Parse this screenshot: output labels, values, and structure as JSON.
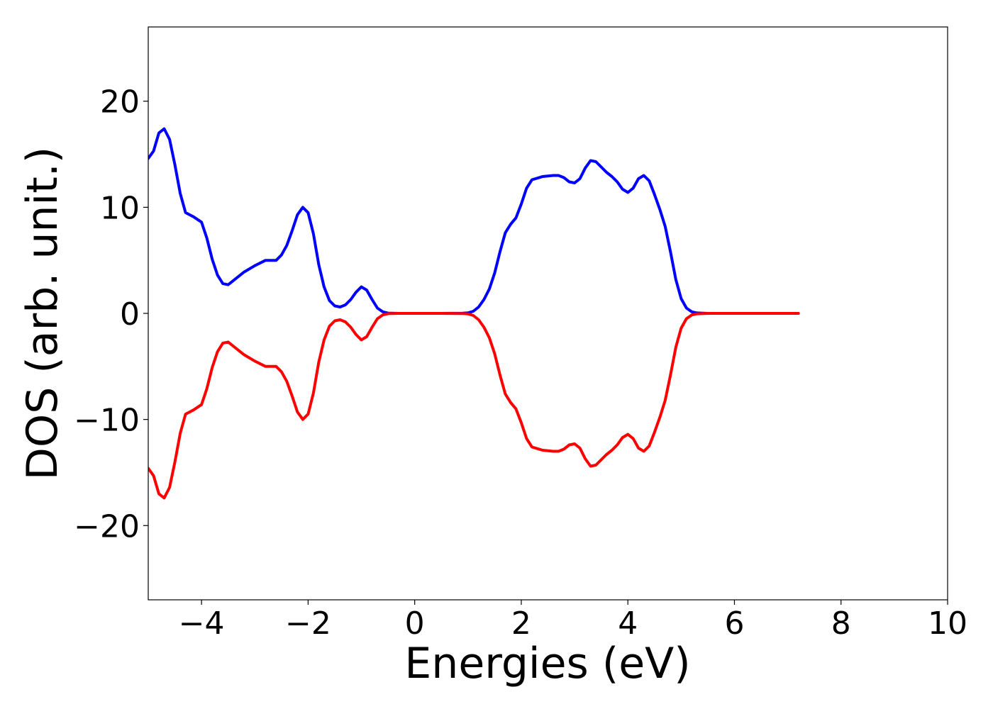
{
  "chart_data": {
    "type": "line",
    "title": "",
    "xlabel": "Energies (eV)",
    "ylabel": "DOS (arb. unit.)",
    "xlim": [
      -5,
      10
    ],
    "ylim": [
      -27,
      27
    ],
    "x_ticks": [
      {
        "value": -4,
        "label": "−4"
      },
      {
        "value": -2,
        "label": "−2"
      },
      {
        "value": 0,
        "label": "0"
      },
      {
        "value": 2,
        "label": "2"
      },
      {
        "value": 4,
        "label": "4"
      },
      {
        "value": 6,
        "label": "6"
      },
      {
        "value": 8,
        "label": "8"
      },
      {
        "value": 10,
        "label": "10"
      }
    ],
    "y_ticks": [
      {
        "value": -20,
        "label": "−20"
      },
      {
        "value": -10,
        "label": "−10"
      },
      {
        "value": 0,
        "label": "0"
      },
      {
        "value": 10,
        "label": "10"
      },
      {
        "value": 20,
        "label": "20"
      }
    ],
    "grid": false,
    "legend": "none",
    "series": [
      {
        "color": "#0000ff",
        "points": [
          [
            -5.0,
            14.6
          ],
          [
            -4.9,
            15.3
          ],
          [
            -4.8,
            17.0
          ],
          [
            -4.7,
            17.4
          ],
          [
            -4.6,
            16.4
          ],
          [
            -4.5,
            14.0
          ],
          [
            -4.4,
            11.3
          ],
          [
            -4.3,
            9.5
          ],
          [
            -4.15,
            9.1
          ],
          [
            -4.0,
            8.6
          ],
          [
            -3.9,
            7.1
          ],
          [
            -3.8,
            5.1
          ],
          [
            -3.7,
            3.6
          ],
          [
            -3.6,
            2.8
          ],
          [
            -3.5,
            2.7
          ],
          [
            -3.4,
            3.1
          ],
          [
            -3.2,
            3.9
          ],
          [
            -3.0,
            4.5
          ],
          [
            -2.8,
            5.0
          ],
          [
            -2.6,
            5.0
          ],
          [
            -2.5,
            5.5
          ],
          [
            -2.4,
            6.4
          ],
          [
            -2.3,
            7.8
          ],
          [
            -2.2,
            9.3
          ],
          [
            -2.1,
            10.0
          ],
          [
            -2.0,
            9.5
          ],
          [
            -1.9,
            7.5
          ],
          [
            -1.8,
            4.6
          ],
          [
            -1.7,
            2.5
          ],
          [
            -1.6,
            1.2
          ],
          [
            -1.5,
            0.7
          ],
          [
            -1.4,
            0.6
          ],
          [
            -1.3,
            0.8
          ],
          [
            -1.2,
            1.3
          ],
          [
            -1.1,
            2.0
          ],
          [
            -1.0,
            2.5
          ],
          [
            -0.9,
            2.2
          ],
          [
            -0.8,
            1.3
          ],
          [
            -0.7,
            0.5
          ],
          [
            -0.6,
            0.15
          ],
          [
            -0.5,
            0.03
          ],
          [
            -0.3,
            0.0
          ],
          [
            0.0,
            0.0
          ],
          [
            0.5,
            0.0
          ],
          [
            0.9,
            0.02
          ],
          [
            1.0,
            0.05
          ],
          [
            1.1,
            0.2
          ],
          [
            1.2,
            0.6
          ],
          [
            1.3,
            1.3
          ],
          [
            1.4,
            2.3
          ],
          [
            1.5,
            3.8
          ],
          [
            1.6,
            5.8
          ],
          [
            1.7,
            7.6
          ],
          [
            1.8,
            8.4
          ],
          [
            1.9,
            9.0
          ],
          [
            2.0,
            10.3
          ],
          [
            2.1,
            11.8
          ],
          [
            2.2,
            12.6
          ],
          [
            2.4,
            12.9
          ],
          [
            2.6,
            13.0
          ],
          [
            2.7,
            13.0
          ],
          [
            2.8,
            12.8
          ],
          [
            2.9,
            12.4
          ],
          [
            3.0,
            12.3
          ],
          [
            3.1,
            12.7
          ],
          [
            3.2,
            13.7
          ],
          [
            3.3,
            14.4
          ],
          [
            3.4,
            14.3
          ],
          [
            3.5,
            13.8
          ],
          [
            3.6,
            13.3
          ],
          [
            3.7,
            12.9
          ],
          [
            3.8,
            12.4
          ],
          [
            3.9,
            11.7
          ],
          [
            4.0,
            11.4
          ],
          [
            4.1,
            11.8
          ],
          [
            4.2,
            12.7
          ],
          [
            4.3,
            13.0
          ],
          [
            4.4,
            12.5
          ],
          [
            4.5,
            11.2
          ],
          [
            4.6,
            9.8
          ],
          [
            4.7,
            8.2
          ],
          [
            4.8,
            5.8
          ],
          [
            4.9,
            3.2
          ],
          [
            5.0,
            1.4
          ],
          [
            5.1,
            0.5
          ],
          [
            5.2,
            0.15
          ],
          [
            5.3,
            0.04
          ],
          [
            5.5,
            0.0
          ],
          [
            6.0,
            0.0
          ],
          [
            7.0,
            0.0
          ],
          [
            7.2,
            0.0
          ]
        ]
      },
      {
        "color": "#ff0000",
        "points": [
          [
            -5.0,
            -14.6
          ],
          [
            -4.9,
            -15.3
          ],
          [
            -4.8,
            -17.0
          ],
          [
            -4.7,
            -17.4
          ],
          [
            -4.6,
            -16.4
          ],
          [
            -4.5,
            -14.0
          ],
          [
            -4.4,
            -11.3
          ],
          [
            -4.3,
            -9.5
          ],
          [
            -4.15,
            -9.1
          ],
          [
            -4.0,
            -8.6
          ],
          [
            -3.9,
            -7.1
          ],
          [
            -3.8,
            -5.1
          ],
          [
            -3.7,
            -3.6
          ],
          [
            -3.6,
            -2.8
          ],
          [
            -3.5,
            -2.7
          ],
          [
            -3.4,
            -3.1
          ],
          [
            -3.2,
            -3.9
          ],
          [
            -3.0,
            -4.5
          ],
          [
            -2.8,
            -5.0
          ],
          [
            -2.6,
            -5.0
          ],
          [
            -2.5,
            -5.5
          ],
          [
            -2.4,
            -6.4
          ],
          [
            -2.3,
            -7.8
          ],
          [
            -2.2,
            -9.3
          ],
          [
            -2.1,
            -10.0
          ],
          [
            -2.0,
            -9.5
          ],
          [
            -1.9,
            -7.5
          ],
          [
            -1.8,
            -4.6
          ],
          [
            -1.7,
            -2.5
          ],
          [
            -1.6,
            -1.2
          ],
          [
            -1.5,
            -0.7
          ],
          [
            -1.4,
            -0.6
          ],
          [
            -1.3,
            -0.8
          ],
          [
            -1.2,
            -1.3
          ],
          [
            -1.1,
            -2.0
          ],
          [
            -1.0,
            -2.5
          ],
          [
            -0.9,
            -2.2
          ],
          [
            -0.8,
            -1.3
          ],
          [
            -0.7,
            -0.5
          ],
          [
            -0.6,
            -0.15
          ],
          [
            -0.5,
            -0.03
          ],
          [
            -0.3,
            0.0
          ],
          [
            0.0,
            0.0
          ],
          [
            0.5,
            0.0
          ],
          [
            0.9,
            -0.02
          ],
          [
            1.0,
            -0.05
          ],
          [
            1.1,
            -0.2
          ],
          [
            1.2,
            -0.6
          ],
          [
            1.3,
            -1.3
          ],
          [
            1.4,
            -2.3
          ],
          [
            1.5,
            -3.8
          ],
          [
            1.6,
            -5.8
          ],
          [
            1.7,
            -7.6
          ],
          [
            1.8,
            -8.4
          ],
          [
            1.9,
            -9.0
          ],
          [
            2.0,
            -10.3
          ],
          [
            2.1,
            -11.8
          ],
          [
            2.2,
            -12.6
          ],
          [
            2.4,
            -12.9
          ],
          [
            2.6,
            -13.0
          ],
          [
            2.7,
            -13.0
          ],
          [
            2.8,
            -12.8
          ],
          [
            2.9,
            -12.4
          ],
          [
            3.0,
            -12.3
          ],
          [
            3.1,
            -12.7
          ],
          [
            3.2,
            -13.7
          ],
          [
            3.3,
            -14.4
          ],
          [
            3.4,
            -14.3
          ],
          [
            3.5,
            -13.8
          ],
          [
            3.6,
            -13.3
          ],
          [
            3.7,
            -12.9
          ],
          [
            3.8,
            -12.4
          ],
          [
            3.9,
            -11.7
          ],
          [
            4.0,
            -11.4
          ],
          [
            4.1,
            -11.8
          ],
          [
            4.2,
            -12.7
          ],
          [
            4.3,
            -13.0
          ],
          [
            4.4,
            -12.5
          ],
          [
            4.5,
            -11.2
          ],
          [
            4.6,
            -9.8
          ],
          [
            4.7,
            -8.2
          ],
          [
            4.8,
            -5.8
          ],
          [
            4.9,
            -3.2
          ],
          [
            5.0,
            -1.4
          ],
          [
            5.1,
            -0.5
          ],
          [
            5.2,
            -0.15
          ],
          [
            5.3,
            -0.04
          ],
          [
            5.5,
            0.0
          ],
          [
            6.0,
            0.0
          ],
          [
            7.0,
            0.0
          ],
          [
            7.2,
            0.0
          ]
        ]
      }
    ]
  }
}
